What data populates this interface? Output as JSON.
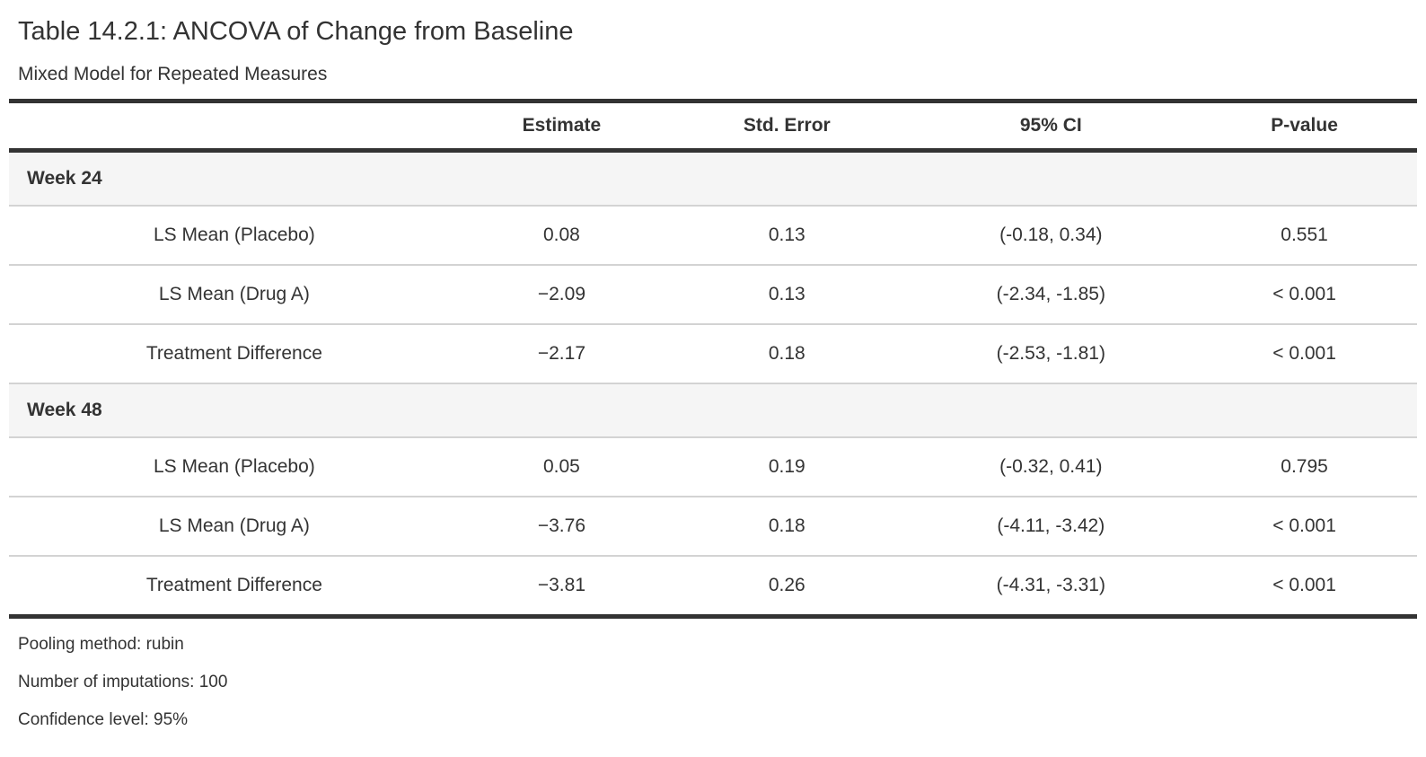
{
  "title": "Table 14.2.1: ANCOVA of Change from Baseline",
  "subtitle": "Mixed Model for Repeated Measures",
  "table": {
    "columns": [
      "",
      "Estimate",
      "Std. Error",
      "95% CI",
      "P-value"
    ],
    "column_widths_pct": [
      32,
      14.5,
      17.5,
      20,
      16
    ],
    "groups": [
      {
        "label": "Week 24",
        "rows": [
          {
            "label": "LS Mean (Placebo)",
            "estimate": "0.08",
            "std_error": "0.13",
            "ci": "(-0.18, 0.34)",
            "p_value": "0.551"
          },
          {
            "label": "LS Mean (Drug A)",
            "estimate": "−2.09",
            "std_error": "0.13",
            "ci": "(-2.34, -1.85)",
            "p_value": "< 0.001"
          },
          {
            "label": "Treatment Difference",
            "estimate": "−2.17",
            "std_error": "0.18",
            "ci": "(-2.53, -1.81)",
            "p_value": "< 0.001"
          }
        ]
      },
      {
        "label": "Week 48",
        "rows": [
          {
            "label": "LS Mean (Placebo)",
            "estimate": "0.05",
            "std_error": "0.19",
            "ci": "(-0.32, 0.41)",
            "p_value": "0.795"
          },
          {
            "label": "LS Mean (Drug A)",
            "estimate": "−3.76",
            "std_error": "0.18",
            "ci": "(-4.11, -3.42)",
            "p_value": "< 0.001"
          },
          {
            "label": "Treatment Difference",
            "estimate": "−3.81",
            "std_error": "0.26",
            "ci": "(-4.31, -3.31)",
            "p_value": "< 0.001"
          }
        ]
      }
    ],
    "footnotes": [
      "Pooling method: rubin",
      "Number of imputations: 100",
      "Confidence level: 95%"
    ]
  },
  "colors": {
    "text": "#333333",
    "heavy_border": "#333333",
    "light_border": "#d3d3d3",
    "group_row_bg": "#f5f5f5",
    "background": "#ffffff"
  }
}
